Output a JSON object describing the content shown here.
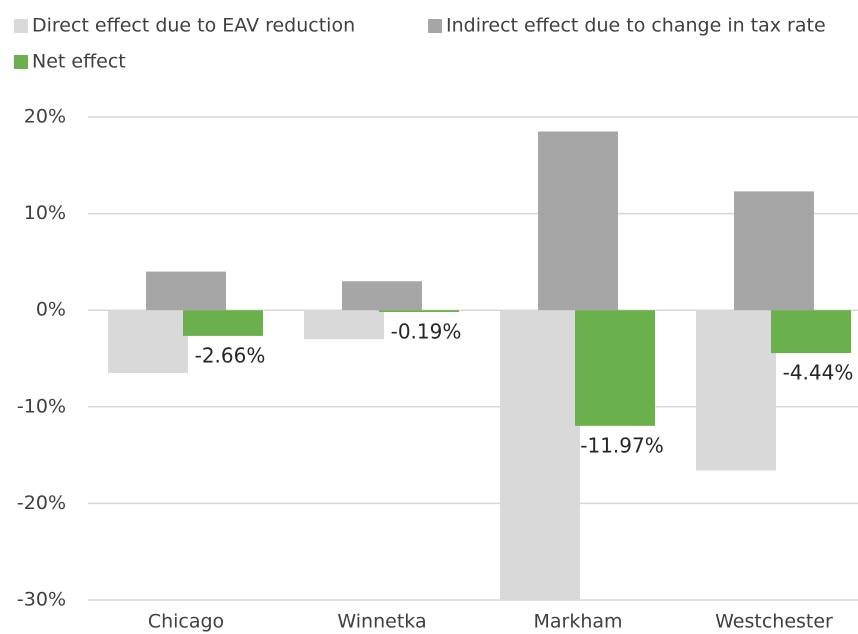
{
  "chart_data": {
    "type": "bar",
    "categories": [
      "Chicago",
      "Winnetka",
      "Markham",
      "Westchester"
    ],
    "series": [
      {
        "name": "Direct effect due to EAV reduction",
        "color": "#d9d9d9",
        "values": [
          -6.5,
          -3.0,
          -30.0,
          -16.6
        ]
      },
      {
        "name": "Indirect effect due to change in tax rate",
        "color": "#a6a6a6",
        "values": [
          4.0,
          3.0,
          18.5,
          12.3
        ]
      },
      {
        "name": "Net effect",
        "color": "#6ab04c",
        "values": [
          -2.66,
          -0.19,
          -11.97,
          -4.44
        ],
        "value_labels": [
          "-2.66%",
          "-0.19%",
          "-11.97%",
          "-4.44%"
        ]
      }
    ],
    "ylim": [
      -30,
      20
    ],
    "yticks": [
      {
        "value": -30,
        "label": "-30%"
      },
      {
        "value": -20,
        "label": "-20%"
      },
      {
        "value": -10,
        "label": "-10%"
      },
      {
        "value": 0,
        "label": "0%"
      },
      {
        "value": 10,
        "label": "10%"
      },
      {
        "value": 20,
        "label": "20%"
      }
    ],
    "grid": true,
    "legend": "top"
  }
}
